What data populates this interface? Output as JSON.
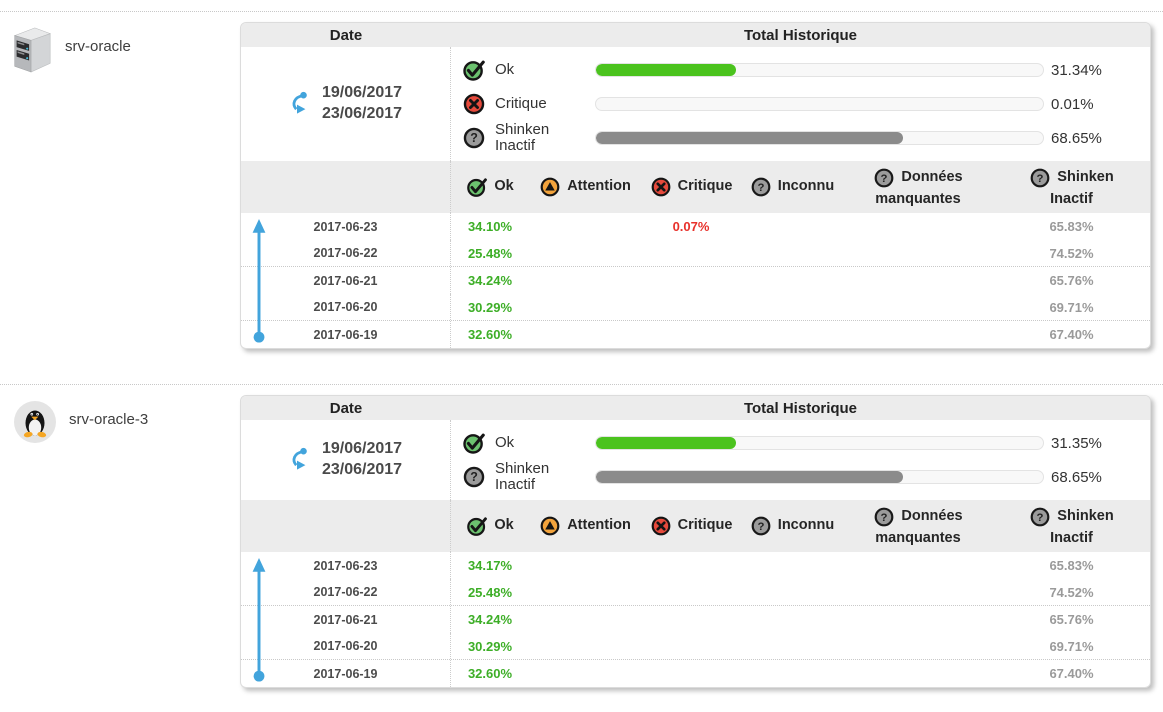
{
  "colors": {
    "ok_green_bar": "#4bc31e",
    "ok_green_text": "#3dae27",
    "critical_red": "#e8312b",
    "inactive_gray_bar": "#8b8b8b",
    "inactive_gray_text": "#9a9a9a",
    "accent_blue": "#42a4dc",
    "header_bg": "#ececec"
  },
  "table_headers": {
    "date": "Date",
    "total": "Total Historique"
  },
  "legend": {
    "ok": "Ok",
    "attention": "Attention",
    "critique": "Critique",
    "inconnu": "Inconnu",
    "missing_l1": "Données",
    "missing_l2": "manquantes",
    "inactive_l1": "Shinken",
    "inactive_l2": "Inactif"
  },
  "hosts": [
    {
      "name": "srv-oracle",
      "os_icon": "server-icon",
      "period": {
        "from": "19/06/2017",
        "to": "23/06/2017"
      },
      "totals": [
        {
          "label": "Ok",
          "status": "ok",
          "value": 31.34,
          "pct": "31.34%"
        },
        {
          "label": "Critique",
          "status": "critical",
          "value": 0.01,
          "pct": "0.01%"
        },
        {
          "label": "Shinken Inactif",
          "status": "inactive",
          "value": 68.65,
          "pct": "68.65%"
        }
      ],
      "rows": [
        {
          "date": "2017-06-23",
          "ok": "34.10%",
          "attention": "",
          "critique": "0.07%",
          "inconnu": "",
          "missing": "",
          "inactive": "65.83%"
        },
        {
          "date": "2017-06-22",
          "ok": "25.48%",
          "attention": "",
          "critique": "",
          "inconnu": "",
          "missing": "",
          "inactive": "74.52%"
        },
        {
          "date": "2017-06-21",
          "ok": "34.24%",
          "attention": "",
          "critique": "",
          "inconnu": "",
          "missing": "",
          "inactive": "65.76%"
        },
        {
          "date": "2017-06-20",
          "ok": "30.29%",
          "attention": "",
          "critique": "",
          "inconnu": "",
          "missing": "",
          "inactive": "69.71%"
        },
        {
          "date": "2017-06-19",
          "ok": "32.60%",
          "attention": "",
          "critique": "",
          "inconnu": "",
          "missing": "",
          "inactive": "67.40%"
        }
      ]
    },
    {
      "name": "srv-oracle-3",
      "os_icon": "linux-tux-icon",
      "period": {
        "from": "19/06/2017",
        "to": "23/06/2017"
      },
      "totals": [
        {
          "label": "Ok",
          "status": "ok",
          "value": 31.35,
          "pct": "31.35%"
        },
        {
          "label": "Shinken Inactif",
          "status": "inactive",
          "value": 68.65,
          "pct": "68.65%"
        }
      ],
      "rows": [
        {
          "date": "2017-06-23",
          "ok": "34.17%",
          "attention": "",
          "critique": "",
          "inconnu": "",
          "missing": "",
          "inactive": "65.83%"
        },
        {
          "date": "2017-06-22",
          "ok": "25.48%",
          "attention": "",
          "critique": "",
          "inconnu": "",
          "missing": "",
          "inactive": "74.52%"
        },
        {
          "date": "2017-06-21",
          "ok": "34.24%",
          "attention": "",
          "critique": "",
          "inconnu": "",
          "missing": "",
          "inactive": "65.76%"
        },
        {
          "date": "2017-06-20",
          "ok": "30.29%",
          "attention": "",
          "critique": "",
          "inconnu": "",
          "missing": "",
          "inactive": "69.71%"
        },
        {
          "date": "2017-06-19",
          "ok": "32.60%",
          "attention": "",
          "critique": "",
          "inconnu": "",
          "missing": "",
          "inactive": "67.40%"
        }
      ]
    }
  ]
}
